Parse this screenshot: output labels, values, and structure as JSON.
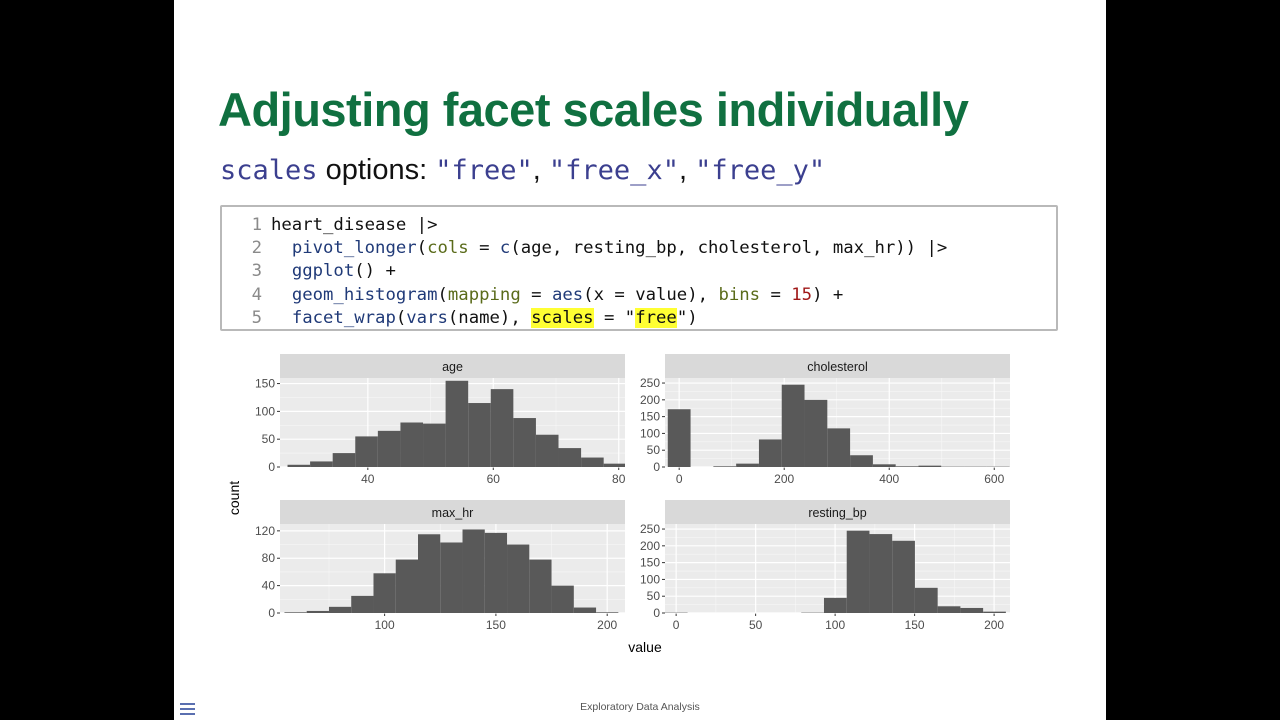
{
  "slide": {
    "title": "Adjusting facet scales individually",
    "subtitle": {
      "code": "scales",
      "text": " options: ",
      "opt1": "\"free\"",
      "sep1": ", ",
      "opt2": "\"free_x\"",
      "sep2": ", ",
      "opt3": "\"free_y\""
    },
    "footer": "Exploratory Data Analysis"
  },
  "code_lines": [
    {
      "n": "1",
      "text": "heart_disease |>"
    },
    {
      "n": "2",
      "text": "  pivot_longer(cols = c(age, resting_bp, cholesterol, max_hr)) |>"
    },
    {
      "n": "3",
      "text": "  ggplot() +"
    },
    {
      "n": "4",
      "text": "  geom_histogram(mapping = aes(x = value), bins = 15) +"
    },
    {
      "n": "5",
      "text": "  facet_wrap(vars(name), scales = \"free\")"
    }
  ],
  "colors": {
    "title": "#107040",
    "bar": "#595959",
    "panel_bg": "#ebebeb",
    "strip_bg": "#d9d9d9",
    "highlight": "#ffff33"
  },
  "chart_data": {
    "type": "bar",
    "xlabel": "value",
    "ylabel": "count",
    "facets": [
      {
        "name": "age",
        "xlim": [
          26,
          81
        ],
        "ylim": [
          0,
          160
        ],
        "xticks": [
          40,
          60,
          80
        ],
        "yticks": [
          0,
          50,
          100,
          150
        ],
        "bin_width": 3.6,
        "bin_start": 27.2,
        "values": [
          4,
          10,
          25,
          55,
          65,
          80,
          78,
          155,
          115,
          140,
          88,
          58,
          34,
          17,
          6
        ]
      },
      {
        "name": "cholesterol",
        "xlim": [
          -27,
          630
        ],
        "ylim": [
          0,
          265
        ],
        "xticks": [
          0,
          200,
          400,
          600
        ],
        "yticks": [
          0,
          50,
          100,
          150,
          200,
          250
        ],
        "bin_width": 43.4,
        "bin_start": -21.7,
        "values": [
          172,
          0,
          2,
          10,
          82,
          245,
          200,
          115,
          35,
          8,
          2,
          4,
          1,
          1,
          1
        ]
      },
      {
        "name": "max_hr",
        "xlim": [
          53,
          208
        ],
        "ylim": [
          0,
          130
        ],
        "xticks": [
          50,
          100,
          150,
          200
        ],
        "yticks": [
          0,
          40,
          80,
          120
        ],
        "bin_width": 10.0,
        "bin_start": 55,
        "values": [
          1,
          3,
          9,
          25,
          58,
          78,
          115,
          103,
          122,
          117,
          100,
          78,
          40,
          8,
          1
        ]
      },
      {
        "name": "resting_bp",
        "xlim": [
          -7,
          210
        ],
        "ylim": [
          0,
          265
        ],
        "xticks": [
          0,
          50,
          100,
          150,
          200
        ],
        "yticks": [
          0,
          50,
          100,
          150,
          200,
          250
        ],
        "bin_width": 14.3,
        "bin_start": -7.1,
        "values": [
          1,
          0,
          0,
          0,
          0,
          0,
          1,
          45,
          245,
          235,
          215,
          75,
          20,
          15,
          4
        ]
      }
    ]
  }
}
